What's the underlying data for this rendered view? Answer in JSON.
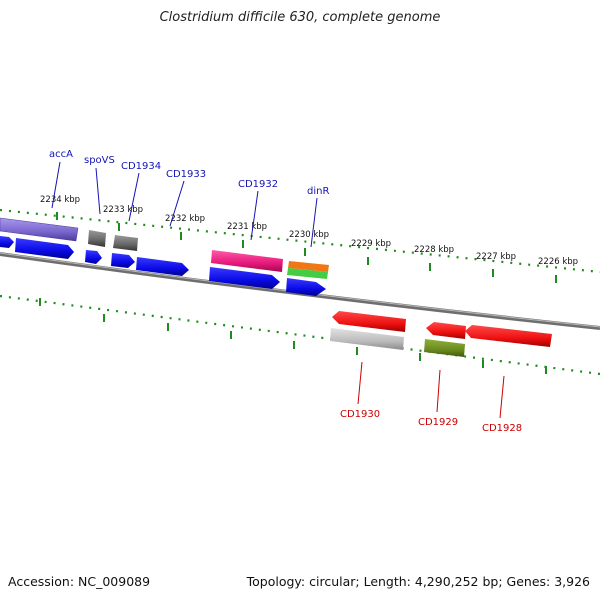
{
  "title": "Clostridium difficile 630, complete genome",
  "footer": {
    "accession": "Accession: NC_009089",
    "summary": "Topology: circular; Length: 4,290,252 bp; Genes: 3,926"
  },
  "ruler_unit": "kbp",
  "ruler_ticks": [
    {
      "pos": 2234,
      "label": "2234 kbp"
    },
    {
      "pos": 2233,
      "label": "2233 kbp"
    },
    {
      "pos": 2232,
      "label": "2232 kbp"
    },
    {
      "pos": 2231,
      "label": "2231 kbp"
    },
    {
      "pos": 2230,
      "label": "2230 kbp"
    },
    {
      "pos": 2229,
      "label": "2229 kbp"
    },
    {
      "pos": 2228,
      "label": "2228 kbp"
    },
    {
      "pos": 2227,
      "label": "2227 kbp"
    },
    {
      "pos": 2226,
      "label": "2226 kbp"
    }
  ],
  "forward_gene_labels": [
    "accA",
    "spoVS",
    "CD1934",
    "CD1933",
    "CD1932",
    "dinR"
  ],
  "reverse_gene_labels": [
    "CD1930",
    "CD1929",
    "CD1928"
  ],
  "colors": {
    "backbone": "#7a7a7a",
    "ruler": "#1f8a1f",
    "forward_label": "#1414b4",
    "reverse_label": "#cc0000",
    "cds": "#0a0ae6",
    "gene_red": "#ee1111",
    "gene_pink": "#e6197a",
    "gene_gray": "#666666",
    "gene_lightgray": "#bbbbbb",
    "gene_purple": "#7a66cc",
    "gene_orange": "#f07814",
    "gene_green": "#44cc44",
    "gene_olive": "#6b8a1e"
  }
}
